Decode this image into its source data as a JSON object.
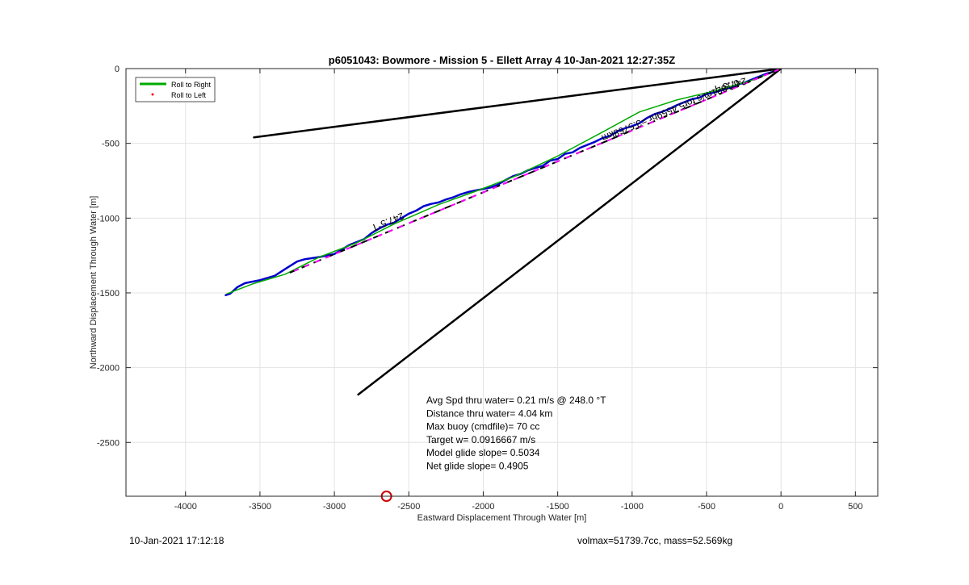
{
  "footer": {
    "date": "10-Jan-2021 17:12:18",
    "mass": "volmax=51739.7cc, mass=52.569kg"
  },
  "chart_data": {
    "type": "line",
    "title": "p6051043: Bowmore - Mission 5 - Ellett Array 4 10-Jan-2021 12:27:35Z",
    "xlabel": "Eastward Displacement Through Water [m]",
    "ylabel": "Northward Displacement Through Water [m]",
    "xlim": [
      -4400,
      650
    ],
    "ylim": [
      -2860,
      0
    ],
    "xticks": [
      -4000,
      -3500,
      -3000,
      -2500,
      -2000,
      -1500,
      -1000,
      -500,
      0,
      500
    ],
    "yticks": [
      0,
      -500,
      -1000,
      -1500,
      -2000,
      -2500
    ],
    "grid": true,
    "legend": {
      "placement": "top-left",
      "entries": [
        {
          "label": "Roll to Right",
          "color": "#00aa00",
          "style": "line"
        },
        {
          "label": "Roll to Left",
          "color": "#ff0000",
          "style": "dot"
        }
      ]
    },
    "series": [
      {
        "color": "#0000cc",
        "width": 2.5,
        "x": [
          -3730,
          -3700,
          -3650,
          -3600,
          -3500,
          -3400,
          -3330,
          -3250,
          -3200,
          -3100,
          -3050,
          -3000,
          -2950,
          -2900,
          -2850,
          -2800,
          -2750,
          -2700,
          -2650,
          -2600,
          -2550,
          -2500,
          -2450,
          -2400,
          -2350,
          -2300,
          -2250,
          -2200,
          -2150,
          -2100,
          -2050,
          -2000,
          -1950,
          -1900,
          -1850,
          -1800,
          -1750,
          -1700,
          -1650,
          -1600,
          -1550,
          -1500,
          -1450,
          -1400,
          -1350,
          -1300,
          -1250,
          -1200,
          -1150,
          -1100,
          -1050,
          -1000,
          -950,
          -900,
          -850,
          -800,
          -750,
          -700,
          -650,
          -600,
          -550,
          -500,
          -450,
          -400,
          -350,
          -300,
          -250,
          -200,
          -150,
          -100,
          -50,
          0
        ],
        "y": [
          -1515,
          -1505,
          -1460,
          -1435,
          -1415,
          -1385,
          -1340,
          -1290,
          -1275,
          -1260,
          -1250,
          -1240,
          -1210,
          -1180,
          -1160,
          -1140,
          -1100,
          -1070,
          -1045,
          -1030,
          -1000,
          -970,
          -950,
          -920,
          -905,
          -895,
          -875,
          -860,
          -840,
          -825,
          -815,
          -805,
          -795,
          -775,
          -745,
          -720,
          -705,
          -680,
          -665,
          -650,
          -615,
          -605,
          -570,
          -560,
          -530,
          -510,
          -490,
          -465,
          -450,
          -420,
          -400,
          -385,
          -365,
          -330,
          -305,
          -290,
          -270,
          -245,
          -225,
          -205,
          -195,
          -170,
          -160,
          -145,
          -130,
          -110,
          -95,
          -75,
          -55,
          -35,
          -20,
          0
        ]
      },
      {
        "color": "#00aa00",
        "width": 1.5,
        "x": [
          -3720,
          -3550,
          -3330,
          -3100,
          -2850,
          -2600,
          -2300,
          -2050,
          -1800,
          -1500,
          -1200,
          -950,
          -700,
          -450,
          -200,
          0
        ],
        "y": [
          -1505,
          -1440,
          -1375,
          -1260,
          -1165,
          -1040,
          -910,
          -820,
          -725,
          -585,
          -425,
          -290,
          -210,
          -150,
          -80,
          0
        ]
      },
      {
        "color": "#000000",
        "width": 2.5,
        "x": [
          -3540,
          0
        ],
        "y": [
          -460,
          0
        ]
      },
      {
        "color": "#000000",
        "width": 2.5,
        "x": [
          -2840,
          0
        ],
        "y": [
          -2180,
          0
        ]
      },
      {
        "color": "#000000",
        "width": 2,
        "dash": "10,6",
        "x": [
          -3300,
          0
        ],
        "y": [
          -1365,
          0
        ]
      },
      {
        "color": "#ff00ff",
        "width": 2,
        "dash": "6,8",
        "dashoffset": "8",
        "x": [
          -3300,
          0
        ],
        "y": [
          -1365,
          0
        ]
      }
    ],
    "annotations": [
      {
        "text": "247.5°T",
        "x": -2650,
        "y": -1005,
        "rotate": 157.6,
        "size": 12
      },
      {
        "text": "247.5°T",
        "x": -350,
        "y": -90,
        "rotate": 165,
        "size": 12
      },
      {
        "text": "0.1821m/s for5.4559hr =3.5768km",
        "x": -750,
        "y": -260,
        "rotate": 157.6,
        "size": 12
      }
    ],
    "stats": [
      "Avg Spd thru water=  0.21 m/s @ 248.0 °T",
      "Distance thru water=  4.04 km",
      "Max buoy (cmdfile)= 70 cc",
      "Target w= 0.0916667 m/s",
      "Model glide slope= 0.5034",
      "Net glide slope= 0.4905"
    ],
    "marker": {
      "x": -2650,
      "y": -2860,
      "color": "#cc0000"
    }
  }
}
